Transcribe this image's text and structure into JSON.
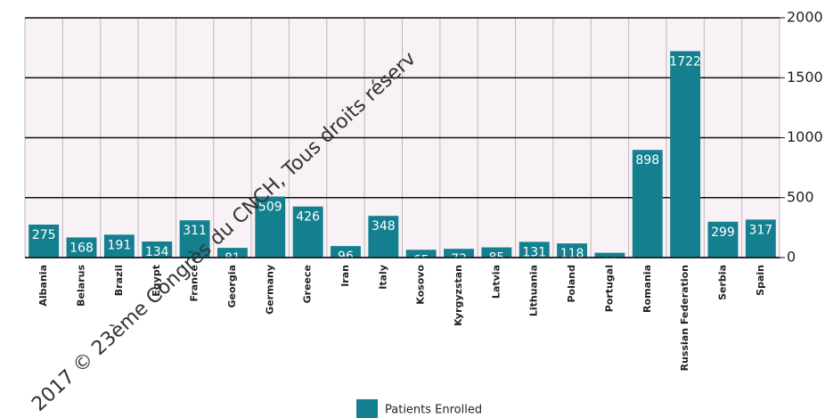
{
  "chart_data": {
    "type": "bar",
    "categories": [
      "Albania",
      "Belarus",
      "Brazil",
      "Egypt",
      "France",
      "Georgia",
      "Germany",
      "Greece",
      "Iran",
      "Italy",
      "Kosovo",
      "Kyrgyzstan",
      "Latvia",
      "Lithuania",
      "Poland",
      "Portugal",
      "Romania",
      "Russian Federation",
      "Serbia",
      "Spain"
    ],
    "series": [
      {
        "name": "Patients Enrolled",
        "color": "#14808f",
        "values": [
          275,
          168,
          191,
          134,
          311,
          81,
          509,
          426,
          96,
          348,
          65,
          73,
          85,
          131,
          118,
          40,
          898,
          1722,
          299,
          317
        ]
      }
    ],
    "ylim": [
      0,
      2000
    ],
    "yticks": [
      0,
      500,
      1000,
      1500,
      2000
    ],
    "grid": true,
    "legend": "bottom",
    "annotations": [
      "2017 © 23ème Congrès du CNCH, Tous droits réserv"
    ]
  }
}
